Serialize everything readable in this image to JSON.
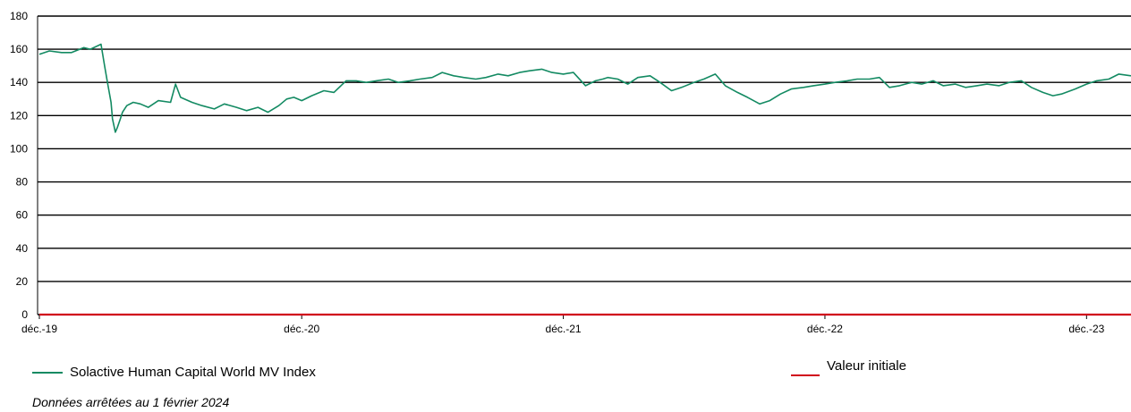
{
  "chart_data": {
    "type": "line",
    "x_ticks": [
      "déc.-19",
      "déc.-20",
      "déc.-21",
      "déc.-22",
      "déc.-23"
    ],
    "ylim": [
      0,
      180
    ],
    "y_ticks": [
      0,
      20,
      40,
      60,
      80,
      100,
      120,
      140,
      160,
      180
    ],
    "grid": true,
    "series": [
      {
        "name": "Solactive Human Capital World MV Index",
        "color": "#138a62",
        "x": [
          "2019-12-01",
          "2019-12-15",
          "2020-01-01",
          "2020-01-15",
          "2020-02-01",
          "2020-02-10",
          "2020-02-20",
          "2020-02-25",
          "2020-03-01",
          "2020-03-05",
          "2020-03-10",
          "2020-03-12",
          "2020-03-16",
          "2020-03-19",
          "2020-03-23",
          "2020-03-26",
          "2020-04-01",
          "2020-04-10",
          "2020-04-20",
          "2020-05-01",
          "2020-05-15",
          "2020-06-01",
          "2020-06-08",
          "2020-06-15",
          "2020-07-01",
          "2020-07-15",
          "2020-08-01",
          "2020-08-15",
          "2020-09-01",
          "2020-09-15",
          "2020-10-01",
          "2020-10-15",
          "2020-10-30",
          "2020-11-10",
          "2020-11-20",
          "2020-12-01",
          "2020-12-15",
          "2021-01-01",
          "2021-01-15",
          "2021-02-01",
          "2021-02-15",
          "2021-03-01",
          "2021-03-15",
          "2021-04-01",
          "2021-04-15",
          "2021-05-01",
          "2021-05-15",
          "2021-06-01",
          "2021-06-15",
          "2021-07-01",
          "2021-07-15",
          "2021-08-01",
          "2021-08-15",
          "2021-09-01",
          "2021-09-15",
          "2021-10-01",
          "2021-10-15",
          "2021-11-01",
          "2021-11-15",
          "2021-12-01",
          "2021-12-15",
          "2022-01-01",
          "2022-01-15",
          "2022-01-25",
          "2022-02-01",
          "2022-02-15",
          "2022-03-01",
          "2022-03-15",
          "2022-04-01",
          "2022-04-15",
          "2022-05-01",
          "2022-05-15",
          "2022-06-01",
          "2022-06-15",
          "2022-07-01",
          "2022-07-15",
          "2022-08-01",
          "2022-08-15",
          "2022-09-01",
          "2022-09-15",
          "2022-09-30",
          "2022-10-15",
          "2022-11-01",
          "2022-11-15",
          "2022-12-01",
          "2022-12-15",
          "2023-01-01",
          "2023-01-15",
          "2023-02-01",
          "2023-02-15",
          "2023-03-01",
          "2023-03-15",
          "2023-04-01",
          "2023-04-15",
          "2023-05-01",
          "2023-05-15",
          "2023-06-01",
          "2023-06-15",
          "2023-07-01",
          "2023-07-15",
          "2023-08-01",
          "2023-08-15",
          "2023-09-01",
          "2023-09-15",
          "2023-10-01",
          "2023-10-15",
          "2023-10-27",
          "2023-11-15",
          "2023-12-01",
          "2023-12-15",
          "2024-01-01",
          "2024-01-15",
          "2024-02-01"
        ],
        "values": [
          157,
          159,
          158,
          158,
          161,
          160,
          162,
          163,
          150,
          140,
          128,
          118,
          110,
          113,
          118,
          122,
          126,
          128,
          127,
          125,
          129,
          128,
          139,
          131,
          128,
          126,
          124,
          127,
          125,
          123,
          125,
          122,
          126,
          130,
          131,
          129,
          132,
          135,
          134,
          141,
          141,
          140,
          141,
          142,
          140,
          141,
          142,
          143,
          146,
          144,
          143,
          142,
          143,
          145,
          144,
          146,
          147,
          148,
          146,
          145,
          146,
          138,
          141,
          142,
          143,
          142,
          139,
          143,
          144,
          140,
          135,
          137,
          140,
          142,
          145,
          138,
          134,
          131,
          127,
          129,
          133,
          136,
          137,
          138,
          139,
          140,
          141,
          142,
          142,
          143,
          137,
          138,
          140,
          139,
          141,
          138,
          139,
          137,
          138,
          139,
          138,
          140,
          141,
          137,
          134,
          132,
          133,
          136,
          139,
          141,
          142,
          145,
          144
        ]
      },
      {
        "name": "Valeur initiale",
        "color": "#d0021b",
        "x": [
          "2019-12-01",
          "2024-02-01"
        ],
        "values": [
          0,
          0
        ]
      }
    ]
  },
  "legend": {
    "index_label": "Solactive Human Capital World MV Index",
    "initial_label": "Valeur initiale"
  },
  "footnote": "Données arrêtées au  1 février 2024"
}
